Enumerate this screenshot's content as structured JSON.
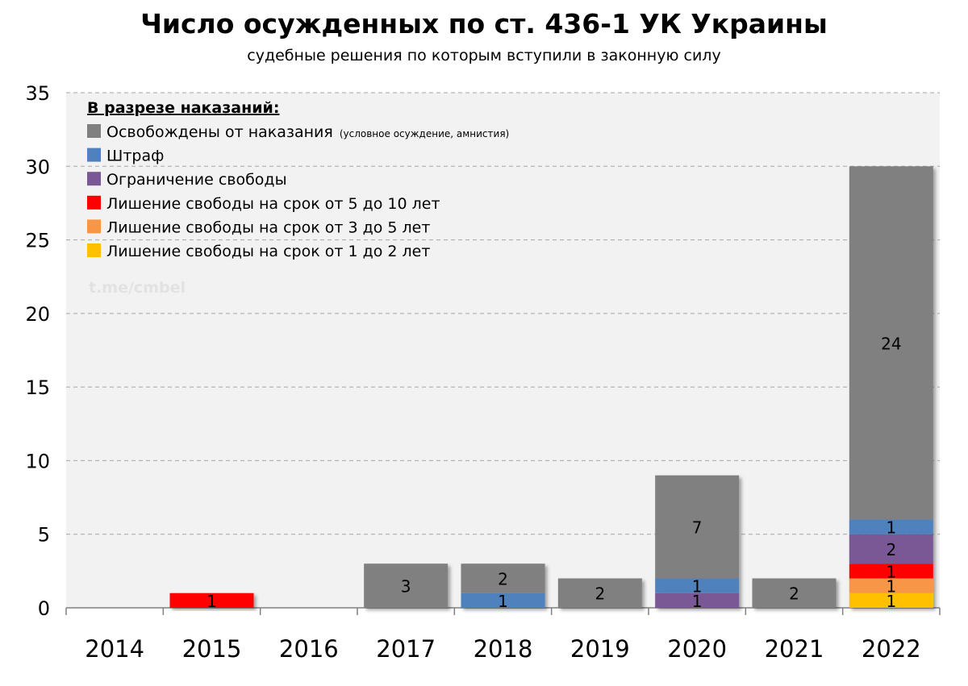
{
  "chart_data": {
    "type": "bar",
    "stacked": true,
    "title": "Число осужденных по ст. 436-1 УК Украины",
    "subtitle": "судебные решения по которым вступили в законную силу",
    "categories": [
      "2014",
      "2015",
      "2016",
      "2017",
      "2018",
      "2019",
      "2020",
      "2021",
      "2022"
    ],
    "ylim": [
      0,
      35
    ],
    "yticks": [
      0,
      5,
      10,
      15,
      20,
      25,
      30,
      35
    ],
    "grid": true,
    "legend_title": "В разрезе наказаний:",
    "legend_placement": "top-left",
    "watermark": "t.me/cmbel",
    "series": [
      {
        "name": "Лишение свободы на срок от 1 до 2 лет",
        "color": "#ffc000",
        "values": [
          0,
          0,
          0,
          0,
          0,
          0,
          0,
          0,
          1
        ]
      },
      {
        "name": "Лишение свободы на срок от 3 до 5 лет",
        "color": "#f79646",
        "values": [
          0,
          0,
          0,
          0,
          0,
          0,
          0,
          0,
          1
        ]
      },
      {
        "name": "Лишение свободы на срок от 5 до 10 лет",
        "color": "#ff0000",
        "values": [
          0,
          1,
          0,
          0,
          0,
          0,
          0,
          0,
          1
        ]
      },
      {
        "name": "Ограничение свободы",
        "color": "#7a5896",
        "values": [
          0,
          0,
          0,
          0,
          0,
          0,
          1,
          0,
          2
        ]
      },
      {
        "name": "Штраф",
        "color": "#4f81bd",
        "values": [
          0,
          0,
          0,
          0,
          1,
          0,
          1,
          0,
          1
        ]
      },
      {
        "name": "Освобождены от наказания",
        "note": "(условное осуждение, амнистия)",
        "color": "#808080",
        "values": [
          0,
          0,
          0,
          3,
          2,
          2,
          7,
          2,
          24
        ]
      }
    ],
    "legend_order": [
      5,
      4,
      3,
      2,
      1,
      0
    ]
  }
}
